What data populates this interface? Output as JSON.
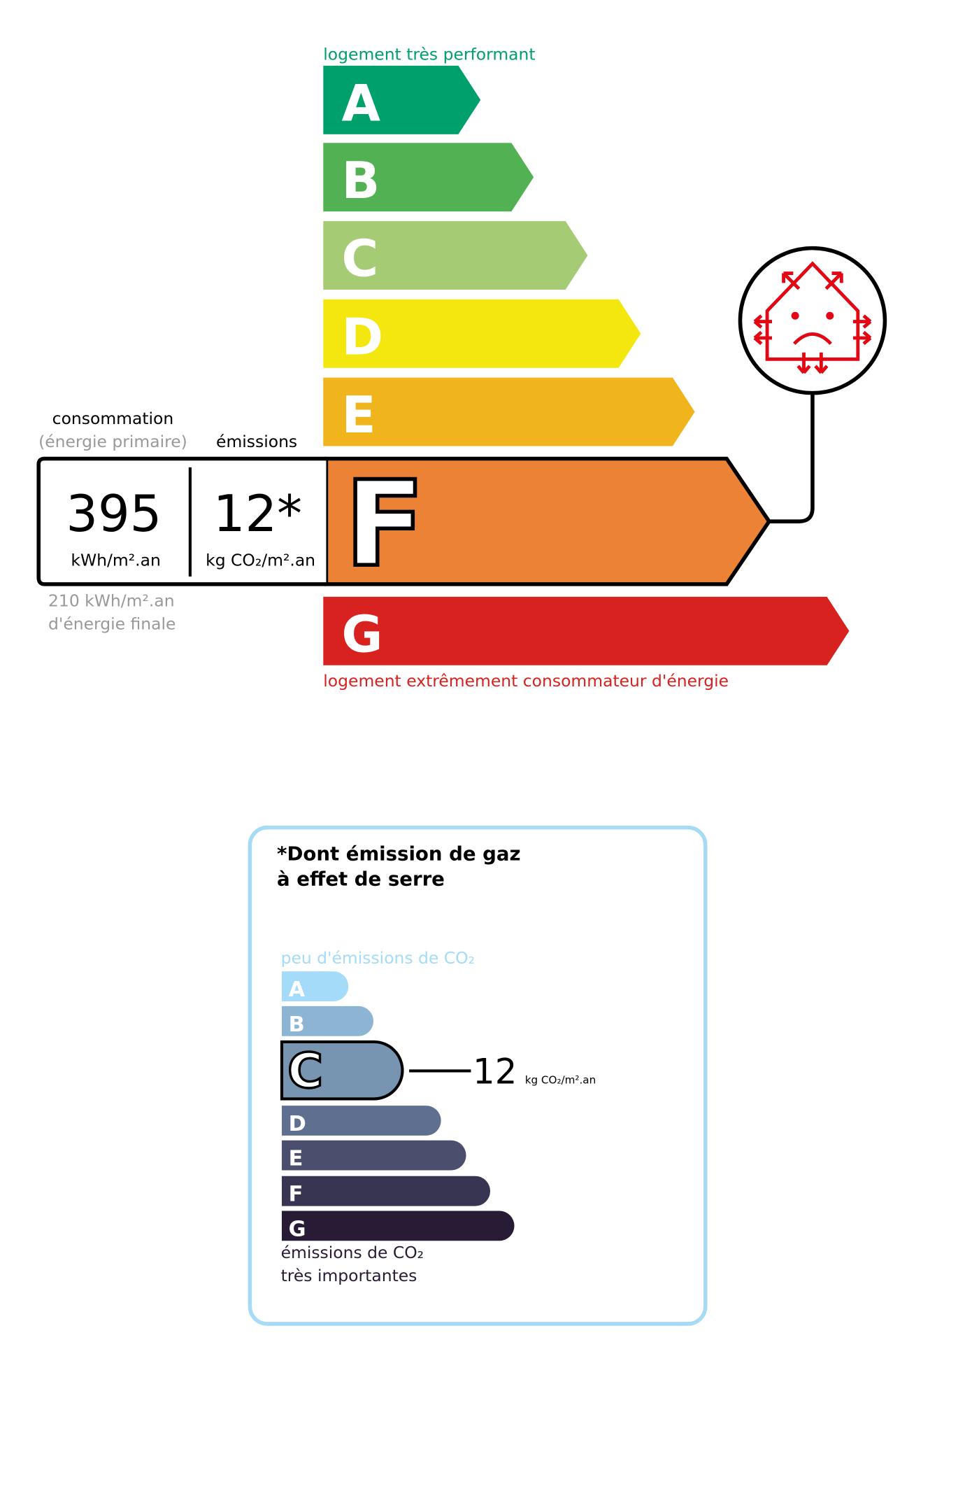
{
  "energy": {
    "top_label": "logement très performant",
    "bottom_label": "logement extrêmement consommateur d'énergie",
    "classes": [
      {
        "letter": "A",
        "color": "#00a06d"
      },
      {
        "letter": "B",
        "color": "#52b153"
      },
      {
        "letter": "C",
        "color": "#a5cc74"
      },
      {
        "letter": "D",
        "color": "#f4e70f"
      },
      {
        "letter": "E",
        "color": "#f0b41c"
      },
      {
        "letter": "F",
        "color": "#eb8235"
      },
      {
        "letter": "G",
        "color": "#d7221f"
      }
    ],
    "current_class": "F",
    "consumption_label": "consommation",
    "consumption_sublabel": "(énergie primaire)",
    "emissions_label": "émissions",
    "consumption_value": "395",
    "consumption_unit": "kWh/m².an",
    "emissions_value": "12*",
    "emissions_unit": "kg CO₂/m².an",
    "final_energy_value": "210 kWh/m².an",
    "final_energy_label": "d'énergie finale",
    "passoire_icon": "sad-house-heat-loss-icon",
    "icon_color": "#e30613"
  },
  "ges": {
    "title_line1": "*Dont émission de gaz",
    "title_line2": "à effet de serre",
    "top_label": "peu d'émissions de CO₂",
    "bottom_label_line1": "émissions de CO₂",
    "bottom_label_line2": "très importantes",
    "classes": [
      {
        "letter": "A",
        "color": "#a4dbf8"
      },
      {
        "letter": "B",
        "color": "#8cb4d3"
      },
      {
        "letter": "C",
        "color": "#7794b1"
      },
      {
        "letter": "D",
        "color": "#5f6f90"
      },
      {
        "letter": "E",
        "color": "#4b4e6d"
      },
      {
        "letter": "F",
        "color": "#383552"
      },
      {
        "letter": "G",
        "color": "#281b35"
      }
    ],
    "current_class": "C",
    "value": "12",
    "unit": "kg CO₂/m².an",
    "border_color": "#a6daf5"
  }
}
